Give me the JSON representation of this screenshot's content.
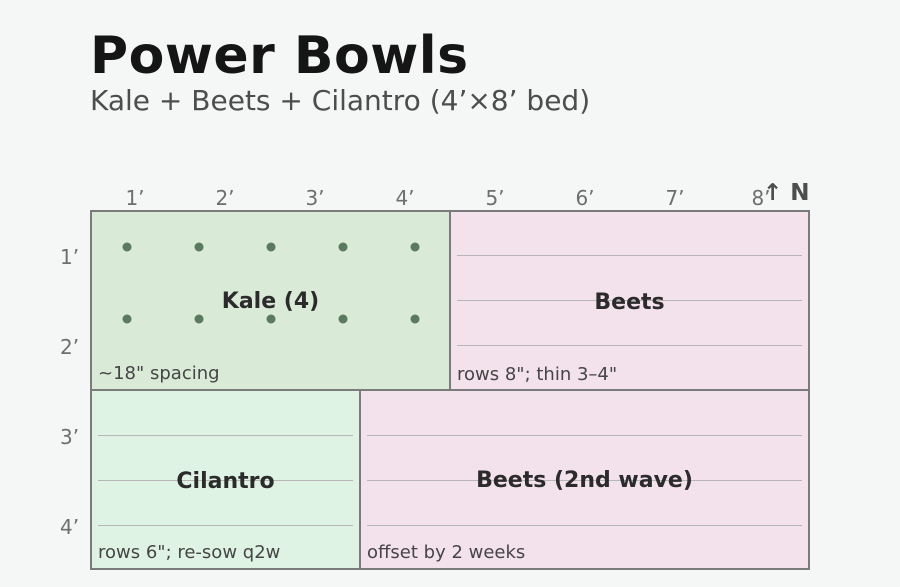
{
  "header": {
    "title": "Power Bowls",
    "subtitle": "Kale + Beets + Cilantro (4’×8’ bed)"
  },
  "axes": {
    "columns": [
      "1’",
      "2’",
      "3’",
      "4’",
      "5’",
      "6’",
      "7’",
      "8’"
    ],
    "rows": [
      "1’",
      "2’",
      "3’",
      "4’"
    ],
    "north_label": "↑ N"
  },
  "sections": {
    "kale": {
      "label": "Kale (4)",
      "note": "~18\" spacing",
      "color": "#d9ead7"
    },
    "beets": {
      "label": "Beets",
      "note": "rows 8\"; thin 3–4\"",
      "color": "#f3e1eb"
    },
    "cilantro": {
      "label": "Cilantro",
      "note": "rows 6\"; re-sow q2w",
      "color": "#dff3e4"
    },
    "beets_second": {
      "label": "Beets (2nd wave)",
      "note": "offset by 2 weeks",
      "color": "#f3e1eb"
    }
  },
  "colors": {
    "background": "#f5f7f7",
    "border": "#7b7b7b",
    "plant_marker": "#5a7a5d",
    "row_line": "#b6b6b6"
  }
}
